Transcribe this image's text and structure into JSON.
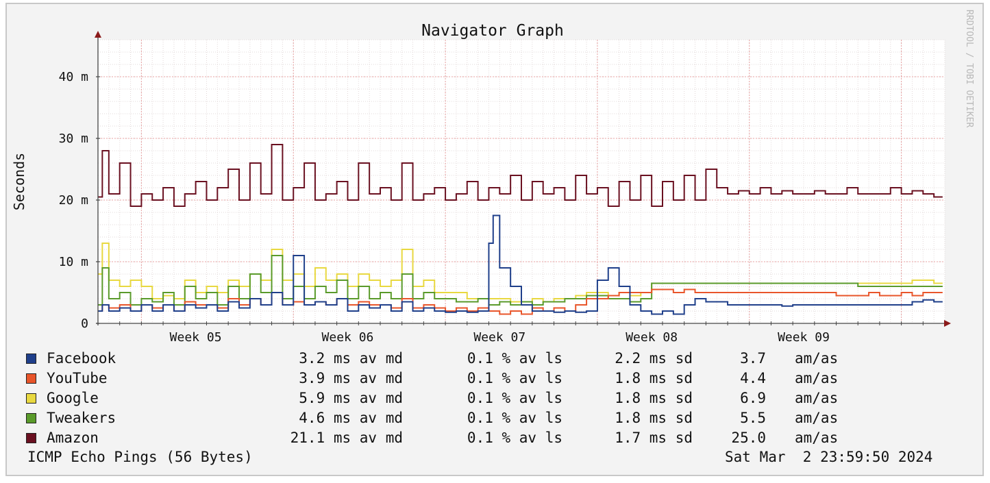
{
  "chart_data": {
    "type": "line",
    "title": "Navigator Graph",
    "ylabel": "Seconds",
    "watermark": "RRDTOOL / TOBI OETIKER",
    "ylim": [
      0,
      0.046
    ],
    "yticks": [
      {
        "value": 0,
        "label": "0"
      },
      {
        "value": 0.01,
        "label": "10 m"
      },
      {
        "value": 0.02,
        "label": "20 m"
      },
      {
        "value": 0.03,
        "label": "30 m"
      },
      {
        "value": 0.04,
        "label": "40 m"
      }
    ],
    "xlim": [
      0,
      39
    ],
    "xticks": [
      {
        "value": 4.5,
        "label": "Week 05"
      },
      {
        "value": 11.5,
        "label": "Week 06"
      },
      {
        "value": 18.5,
        "label": "Week 07"
      },
      {
        "value": 25.5,
        "label": "Week 08"
      },
      {
        "value": 32.5,
        "label": "Week 09"
      }
    ],
    "grid": true,
    "series": [
      {
        "name": "Amazon",
        "color": "#6a1020",
        "x": [
          0,
          0.2,
          0.5,
          1,
          1.5,
          2,
          2.5,
          3,
          3.5,
          4,
          4.5,
          5,
          5.5,
          6,
          6.5,
          7,
          7.5,
          8,
          8.5,
          9,
          9.5,
          10,
          10.5,
          11,
          11.5,
          12,
          12.5,
          13,
          13.5,
          14,
          14.5,
          15,
          15.5,
          16,
          16.5,
          17,
          17.5,
          18,
          18.5,
          19,
          19.5,
          20,
          20.5,
          21,
          21.5,
          22,
          22.5,
          23,
          23.5,
          24,
          24.5,
          25,
          25.5,
          26,
          26.5,
          27,
          27.5,
          28,
          28.5,
          29,
          29.5,
          30,
          30.5,
          31,
          31.5,
          32,
          32.5,
          33,
          33.5,
          34,
          34.5,
          35,
          35.5,
          36,
          36.5,
          37,
          37.5,
          38,
          38.5
        ],
        "values": [
          0.0205,
          0.028,
          0.021,
          0.026,
          0.019,
          0.021,
          0.02,
          0.022,
          0.019,
          0.021,
          0.023,
          0.02,
          0.022,
          0.025,
          0.02,
          0.026,
          0.021,
          0.029,
          0.02,
          0.022,
          0.026,
          0.02,
          0.021,
          0.023,
          0.02,
          0.026,
          0.021,
          0.022,
          0.02,
          0.026,
          0.02,
          0.021,
          0.022,
          0.02,
          0.021,
          0.023,
          0.02,
          0.022,
          0.021,
          0.024,
          0.02,
          0.023,
          0.021,
          0.022,
          0.02,
          0.024,
          0.021,
          0.022,
          0.019,
          0.023,
          0.02,
          0.024,
          0.019,
          0.023,
          0.02,
          0.024,
          0.02,
          0.025,
          0.022,
          0.021,
          0.0215,
          0.021,
          0.022,
          0.021,
          0.0215,
          0.021,
          0.021,
          0.0215,
          0.021,
          0.021,
          0.022,
          0.021,
          0.021,
          0.021,
          0.022,
          0.021,
          0.0215,
          0.021,
          0.0205
        ]
      },
      {
        "name": "Google",
        "color": "#e8d840",
        "x": [
          0,
          0.2,
          0.5,
          1,
          1.5,
          2,
          2.5,
          3,
          3.5,
          4,
          4.5,
          5,
          5.5,
          6,
          6.5,
          7,
          7.5,
          8,
          8.5,
          9,
          9.5,
          10,
          10.5,
          11,
          11.5,
          12,
          12.5,
          13,
          13.5,
          14,
          14.5,
          15,
          15.5,
          16,
          16.5,
          17,
          17.5,
          18,
          18.5,
          19,
          19.5,
          20,
          20.5,
          21,
          21.5,
          22,
          22.5,
          23,
          23.5,
          24,
          24.5,
          25,
          25.5,
          26,
          26.5,
          27,
          27.5,
          28,
          28.5,
          29,
          29.5,
          30,
          30.5,
          31,
          31.5,
          32,
          32.5,
          33,
          33.5,
          34,
          34.5,
          35,
          35.5,
          36,
          36.5,
          37,
          37.5,
          38,
          38.5
        ],
        "values": [
          0.008,
          0.013,
          0.007,
          0.006,
          0.007,
          0.006,
          0.004,
          0.0045,
          0.004,
          0.007,
          0.005,
          0.006,
          0.005,
          0.007,
          0.006,
          0.008,
          0.007,
          0.012,
          0.007,
          0.008,
          0.006,
          0.009,
          0.007,
          0.008,
          0.006,
          0.008,
          0.007,
          0.006,
          0.007,
          0.012,
          0.006,
          0.007,
          0.005,
          0.005,
          0.005,
          0.004,
          0.004,
          0.004,
          0.004,
          0.0035,
          0.0035,
          0.004,
          0.0035,
          0.004,
          0.004,
          0.0045,
          0.005,
          0.005,
          0.0045,
          0.005,
          0.0045,
          0.005,
          0.0065,
          0.0065,
          0.0065,
          0.0065,
          0.0065,
          0.0065,
          0.0065,
          0.0065,
          0.0065,
          0.0065,
          0.0065,
          0.0065,
          0.0065,
          0.0065,
          0.0065,
          0.0065,
          0.0065,
          0.0065,
          0.0065,
          0.0065,
          0.0065,
          0.0065,
          0.0065,
          0.0065,
          0.007,
          0.007,
          0.0065
        ]
      },
      {
        "name": "Tweakers",
        "color": "#5a9a2a",
        "x": [
          0,
          0.2,
          0.5,
          1,
          1.5,
          2,
          2.5,
          3,
          3.5,
          4,
          4.5,
          5,
          5.5,
          6,
          6.5,
          7,
          7.5,
          8,
          8.5,
          9,
          9.5,
          10,
          10.5,
          11,
          11.5,
          12,
          12.5,
          13,
          13.5,
          14,
          14.5,
          15,
          15.5,
          16,
          16.5,
          17,
          17.5,
          18,
          18.5,
          19,
          19.5,
          20,
          20.5,
          21,
          21.5,
          22,
          22.5,
          23,
          23.5,
          24,
          24.5,
          25,
          25.5,
          26,
          26.5,
          27,
          27.5,
          28,
          28.5,
          29,
          29.5,
          30,
          30.5,
          31,
          31.5,
          32,
          32.5,
          33,
          33.5,
          34,
          34.5,
          35,
          35.5,
          36,
          36.5,
          37,
          37.5,
          38,
          38.5
        ],
        "values": [
          0.003,
          0.009,
          0.004,
          0.005,
          0.003,
          0.004,
          0.0035,
          0.005,
          0.003,
          0.006,
          0.004,
          0.005,
          0.003,
          0.006,
          0.004,
          0.008,
          0.005,
          0.011,
          0.004,
          0.006,
          0.004,
          0.006,
          0.005,
          0.007,
          0.004,
          0.006,
          0.004,
          0.005,
          0.004,
          0.008,
          0.004,
          0.005,
          0.004,
          0.004,
          0.0035,
          0.0035,
          0.004,
          0.003,
          0.0035,
          0.003,
          0.0035,
          0.003,
          0.0035,
          0.0035,
          0.004,
          0.004,
          0.0045,
          0.0045,
          0.004,
          0.004,
          0.0035,
          0.004,
          0.0065,
          0.0065,
          0.0065,
          0.0065,
          0.0065,
          0.0065,
          0.0065,
          0.0065,
          0.0065,
          0.0065,
          0.0065,
          0.0065,
          0.0065,
          0.0065,
          0.0065,
          0.0065,
          0.0065,
          0.0065,
          0.0065,
          0.006,
          0.006,
          0.006,
          0.006,
          0.006,
          0.006,
          0.006,
          0.006
        ]
      },
      {
        "name": "YouTube",
        "color": "#e8552a",
        "x": [
          0,
          0.2,
          0.5,
          1,
          1.5,
          2,
          2.5,
          3,
          3.5,
          4,
          4.5,
          5,
          5.5,
          6,
          6.5,
          7,
          7.5,
          8,
          8.5,
          9,
          9.5,
          10,
          10.5,
          11,
          11.5,
          12,
          12.5,
          13,
          13.5,
          14,
          14.5,
          15,
          15.5,
          16,
          16.5,
          17,
          17.5,
          18,
          18.5,
          19,
          19.5,
          20,
          20.5,
          21,
          21.5,
          22,
          22.5,
          23,
          23.5,
          24,
          24.5,
          25,
          25.5,
          26,
          26.5,
          27,
          27.5,
          28,
          28.5,
          29,
          29.5,
          30,
          30.5,
          31,
          31.5,
          32,
          32.5,
          33,
          33.5,
          34,
          34.5,
          35,
          35.5,
          36,
          36.5,
          37,
          37.5,
          38,
          38.5
        ],
        "values": [
          0.002,
          0.003,
          0.0025,
          0.003,
          0.002,
          0.003,
          0.0025,
          0.003,
          0.002,
          0.0035,
          0.003,
          0.003,
          0.0025,
          0.004,
          0.003,
          0.004,
          0.003,
          0.005,
          0.003,
          0.0035,
          0.003,
          0.0035,
          0.003,
          0.004,
          0.003,
          0.0035,
          0.003,
          0.003,
          0.0025,
          0.004,
          0.0025,
          0.003,
          0.0025,
          0.002,
          0.0025,
          0.002,
          0.0025,
          0.002,
          0.0015,
          0.002,
          0.0015,
          0.0025,
          0.002,
          0.0025,
          0.002,
          0.003,
          0.004,
          0.004,
          0.0045,
          0.005,
          0.005,
          0.005,
          0.0055,
          0.0055,
          0.005,
          0.0055,
          0.005,
          0.005,
          0.005,
          0.005,
          0.005,
          0.005,
          0.005,
          0.005,
          0.005,
          0.005,
          0.005,
          0.005,
          0.005,
          0.0045,
          0.0045,
          0.0045,
          0.005,
          0.0045,
          0.0045,
          0.005,
          0.0045,
          0.005,
          0.005
        ]
      },
      {
        "name": "Facebook",
        "color": "#1f3f8a",
        "x": [
          0,
          0.2,
          0.5,
          1,
          1.5,
          2,
          2.5,
          3,
          3.5,
          4,
          4.5,
          5,
          5.5,
          6,
          6.5,
          7,
          7.5,
          8,
          8.5,
          9,
          9.5,
          10,
          10.5,
          11,
          11.5,
          12,
          12.5,
          13,
          13.5,
          14,
          14.5,
          15,
          15.5,
          16,
          16.5,
          17,
          17.5,
          18,
          18.2,
          18.5,
          19,
          19.5,
          20,
          20.5,
          21,
          21.5,
          22,
          22.5,
          23,
          23.5,
          24,
          24.5,
          25,
          25.5,
          26,
          26.5,
          27,
          27.5,
          28,
          28.5,
          29,
          29.5,
          30,
          30.5,
          31,
          31.5,
          32,
          32.5,
          33,
          33.5,
          34,
          34.5,
          35,
          35.5,
          36,
          36.5,
          37,
          37.5,
          38,
          38.5
        ],
        "values": [
          0.002,
          0.003,
          0.002,
          0.0025,
          0.002,
          0.003,
          0.002,
          0.003,
          0.002,
          0.003,
          0.0025,
          0.003,
          0.002,
          0.0035,
          0.0025,
          0.004,
          0.003,
          0.005,
          0.003,
          0.011,
          0.003,
          0.0035,
          0.003,
          0.004,
          0.002,
          0.003,
          0.0025,
          0.003,
          0.002,
          0.0035,
          0.002,
          0.0025,
          0.002,
          0.0018,
          0.002,
          0.0018,
          0.002,
          0.013,
          0.0175,
          0.009,
          0.006,
          0.003,
          0.002,
          0.002,
          0.0018,
          0.002,
          0.0018,
          0.002,
          0.007,
          0.009,
          0.006,
          0.003,
          0.002,
          0.0015,
          0.002,
          0.0015,
          0.003,
          0.004,
          0.0035,
          0.0035,
          0.003,
          0.003,
          0.003,
          0.003,
          0.003,
          0.0028,
          0.003,
          0.003,
          0.003,
          0.003,
          0.003,
          0.003,
          0.003,
          0.003,
          0.003,
          0.003,
          0.003,
          0.0035,
          0.0038,
          0.0035
        ]
      }
    ]
  },
  "legend": [
    {
      "name": "Facebook",
      "color": "#1f3f8a",
      "md": "3.2 ms av md",
      "ls": "0.1 % av ls",
      "sd": "2.2 ms sd",
      "amas": "3.7",
      "amas_unit": "am/as"
    },
    {
      "name": "YouTube",
      "color": "#e8552a",
      "md": "3.9 ms av md",
      "ls": "0.1 % av ls",
      "sd": "1.8 ms sd",
      "amas": "4.4",
      "amas_unit": "am/as"
    },
    {
      "name": "Google",
      "color": "#e8d840",
      "md": "5.9 ms av md",
      "ls": "0.1 % av ls",
      "sd": "1.8 ms sd",
      "amas": "6.9",
      "amas_unit": "am/as"
    },
    {
      "name": "Tweakers",
      "color": "#5a9a2a",
      "md": "4.6 ms av md",
      "ls": "0.1 % av ls",
      "sd": "1.8 ms sd",
      "amas": "5.5",
      "amas_unit": "am/as"
    },
    {
      "name": "Amazon",
      "color": "#6a1020",
      "md": "21.1 ms av md",
      "ls": "0.1 % av ls",
      "sd": "1.7 ms sd",
      "amas": "25.0",
      "amas_unit": "am/as"
    }
  ],
  "footer": {
    "left": "ICMP Echo Pings (56 Bytes)",
    "right": "Sat Mar  2 23:59:50 2024"
  }
}
